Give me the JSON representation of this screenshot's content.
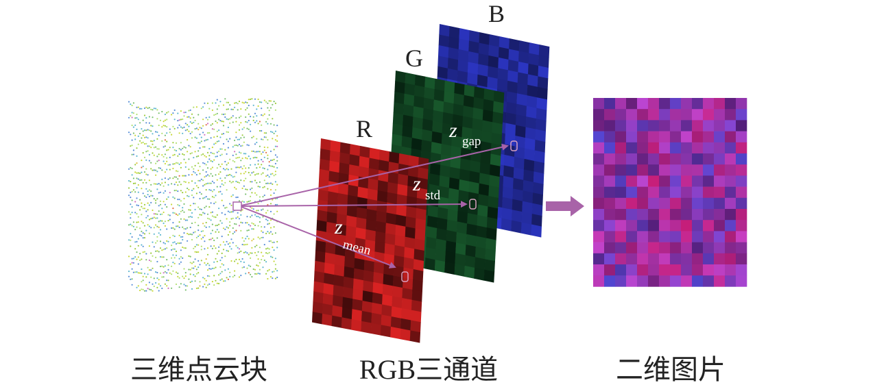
{
  "labels": {
    "point_cloud": "三维点云块",
    "rgb_channels": "RGB三通道",
    "image_2d": "二维图片"
  },
  "channels": [
    "R",
    "G",
    "B"
  ],
  "features": [
    {
      "symbol": "z",
      "subscript": "gap"
    },
    {
      "symbol": "z",
      "subscript": "std"
    },
    {
      "symbol": "z",
      "subscript": "mean"
    }
  ]
}
